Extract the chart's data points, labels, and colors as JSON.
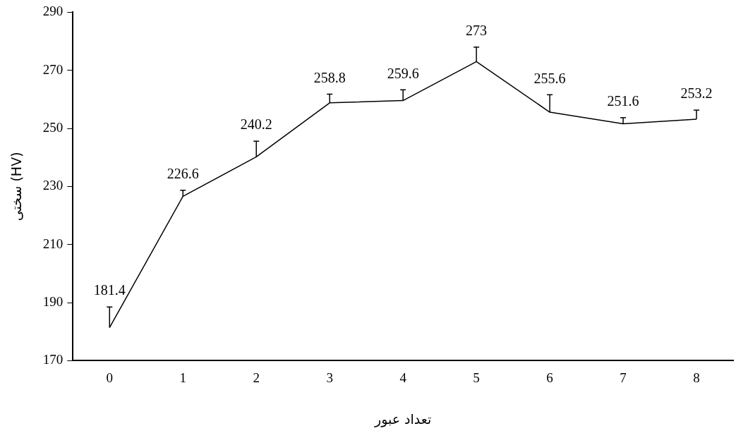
{
  "chart_data": {
    "type": "line",
    "xlabel": "تعداد عبور",
    "ylabel": "سختی (HV)",
    "categories": [
      "0",
      "1",
      "2",
      "3",
      "4",
      "5",
      "6",
      "7",
      "8"
    ],
    "values": [
      181.4,
      226.6,
      240.2,
      258.8,
      259.6,
      273,
      255.6,
      251.6,
      253.2
    ],
    "errors": [
      [
        181.4,
        188.5
      ],
      [
        226.6,
        228.7
      ],
      [
        240.2,
        245.6
      ],
      [
        258.8,
        261.8
      ],
      [
        259.6,
        263.3
      ],
      [
        273,
        278
      ],
      [
        255.6,
        261.6
      ],
      [
        251.6,
        253.7
      ],
      [
        253.2,
        256.3
      ]
    ],
    "color": "#000000",
    "marker": "none",
    "line_style": "solid",
    "grid": false,
    "legend": false,
    "data_labels": true,
    "ylim": [
      170,
      290
    ],
    "yticks": [
      170,
      190,
      210,
      230,
      250,
      270,
      290
    ]
  }
}
